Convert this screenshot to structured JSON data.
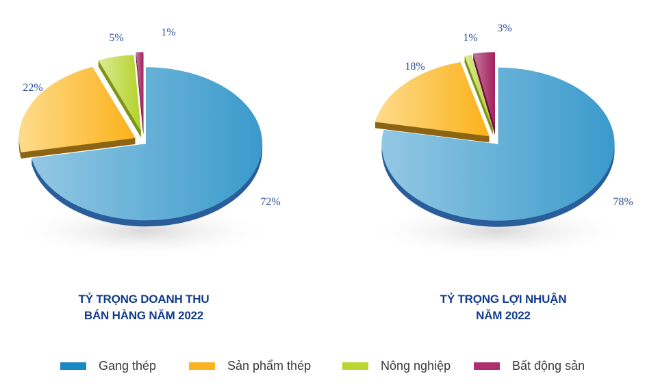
{
  "chart_data": [
    {
      "type": "pie",
      "title": "TỶ TRỌNG DOANH THU BÁN HÀNG NĂM 2022",
      "title_lines": [
        "TỶ TRỌNG DOANH THU",
        "BÁN HÀNG NĂM 2022"
      ],
      "categories": [
        "Gang thép",
        "Sản phẩm thép",
        "Nông nghiệp",
        "Bất động sản"
      ],
      "values": [
        72,
        22,
        5,
        1
      ],
      "labels": [
        "72%",
        "22%",
        "5%",
        "1%"
      ],
      "style": "3d-exploded"
    },
    {
      "type": "pie",
      "title": "TỶ TRỌNG LỢI NHUẬN NĂM 2022",
      "title_lines": [
        "TỶ TRỌNG LỢI NHUẬN",
        "NĂM 2022"
      ],
      "categories": [
        "Gang thép",
        "Sản phẩm thép",
        "Nông nghiệp",
        "Bất động sản"
      ],
      "values": [
        78,
        18,
        1,
        3
      ],
      "labels": [
        "78%",
        "18%",
        "1%",
        "3%"
      ],
      "style": "3d-exploded"
    }
  ],
  "legend": {
    "placement": "bottom",
    "items": [
      {
        "label": "Gang thép",
        "color": "#1a87c6"
      },
      {
        "label": "Sản phẩm thép",
        "color": "#fbb41f"
      },
      {
        "label": "Nông nghiệp",
        "color": "#bcd631"
      },
      {
        "label": "Bất động sản",
        "color": "#ae2f6d"
      }
    ]
  }
}
